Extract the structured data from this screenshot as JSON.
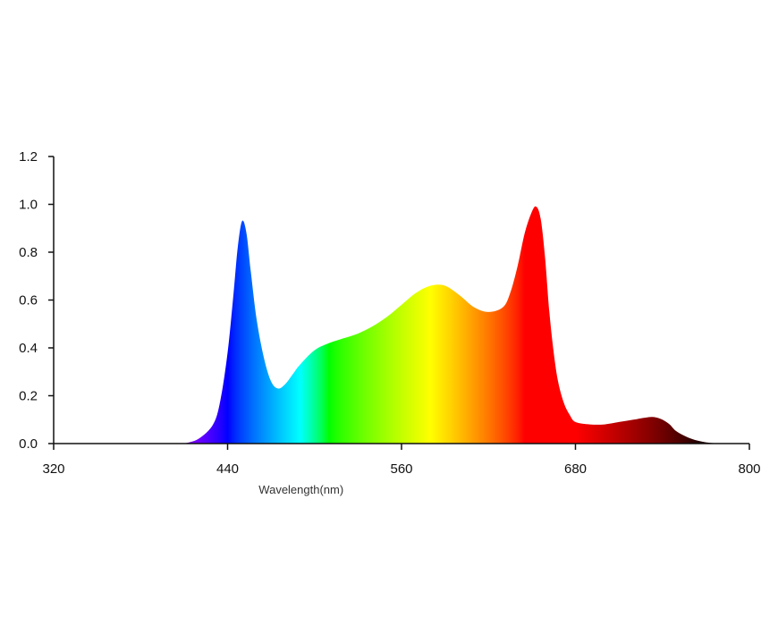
{
  "chart_data": {
    "type": "area",
    "title": "",
    "xlabel": "Wavelength(nm)",
    "ylabel": "",
    "xlim": [
      320,
      800
    ],
    "ylim": [
      0,
      1.2
    ],
    "x_ticks": [
      "320",
      "440",
      "560",
      "680",
      "800"
    ],
    "x_tick_values": [
      320,
      440,
      560,
      680,
      800
    ],
    "y_ticks": [
      "0.0",
      "0.2",
      "0.4",
      "0.6",
      "0.8",
      "1.0",
      "1.2"
    ],
    "y_tick_values": [
      0,
      0.2,
      0.4,
      0.6,
      0.8,
      1.0,
      1.2
    ],
    "grid": false,
    "fill": "visible-spectrum gradient",
    "series": [
      {
        "x": [
          410,
          420,
          430,
          435,
          440,
          444,
          447,
          450,
          453,
          456,
          460,
          465,
          470,
          475,
          480,
          485,
          490,
          500,
          510,
          520,
          530,
          540,
          550,
          560,
          570,
          580,
          590,
          600,
          610,
          620,
          630,
          635,
          640,
          645,
          650,
          653,
          656,
          659,
          662,
          665,
          668,
          672,
          676,
          680,
          690,
          700,
          710,
          720,
          730,
          735,
          740,
          745,
          750,
          760,
          770,
          780
        ],
        "y": [
          0.0,
          0.02,
          0.08,
          0.18,
          0.38,
          0.62,
          0.82,
          0.93,
          0.88,
          0.72,
          0.52,
          0.36,
          0.26,
          0.23,
          0.25,
          0.29,
          0.33,
          0.39,
          0.42,
          0.44,
          0.46,
          0.49,
          0.53,
          0.58,
          0.63,
          0.66,
          0.66,
          0.62,
          0.57,
          0.55,
          0.57,
          0.63,
          0.74,
          0.88,
          0.97,
          0.99,
          0.94,
          0.78,
          0.55,
          0.38,
          0.26,
          0.17,
          0.12,
          0.09,
          0.08,
          0.08,
          0.09,
          0.1,
          0.11,
          0.11,
          0.1,
          0.08,
          0.05,
          0.02,
          0.005,
          0.0
        ]
      }
    ]
  }
}
